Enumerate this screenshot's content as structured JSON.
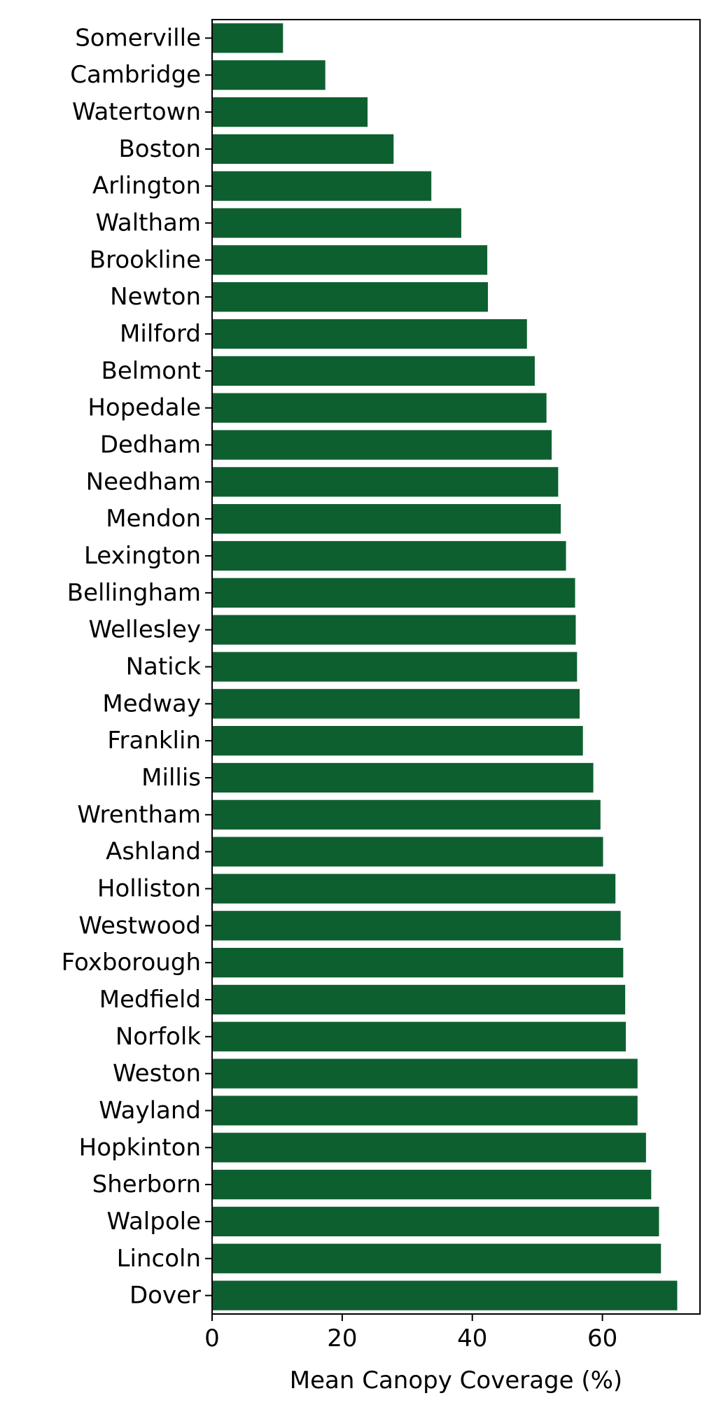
{
  "chart_data": {
    "type": "bar",
    "orientation": "horizontal",
    "categories": [
      "Somerville",
      "Cambridge",
      "Watertown",
      "Boston",
      "Arlington",
      "Waltham",
      "Brookline",
      "Newton",
      "Milford",
      "Belmont",
      "Hopedale",
      "Dedham",
      "Needham",
      "Mendon",
      "Lexington",
      "Bellingham",
      "Wellesley",
      "Natick",
      "Medway",
      "Franklin",
      "Millis",
      "Wrentham",
      "Ashland",
      "Holliston",
      "Westwood",
      "Foxborough",
      "Medfield",
      "Norfolk",
      "Weston",
      "Wayland",
      "Hopkinton",
      "Sherborn",
      "Walpole",
      "Lincoln",
      "Dover"
    ],
    "values": [
      10.9,
      17.4,
      23.9,
      27.9,
      33.7,
      38.3,
      42.3,
      42.4,
      48.4,
      49.6,
      51.4,
      52.2,
      53.2,
      53.6,
      54.4,
      55.8,
      55.9,
      56.1,
      56.5,
      57.0,
      58.6,
      59.7,
      60.1,
      62.0,
      62.8,
      63.2,
      63.5,
      63.6,
      65.4,
      65.4,
      66.7,
      67.5,
      68.7,
      69.0,
      71.5
    ],
    "xlabel": "Mean Canopy Coverage (%)",
    "ylabel": "",
    "xlim": [
      0,
      75
    ],
    "xticks": [
      "0",
      "20",
      "40",
      "60"
    ],
    "grid": false,
    "bar_color": "#0e5f2f"
  }
}
